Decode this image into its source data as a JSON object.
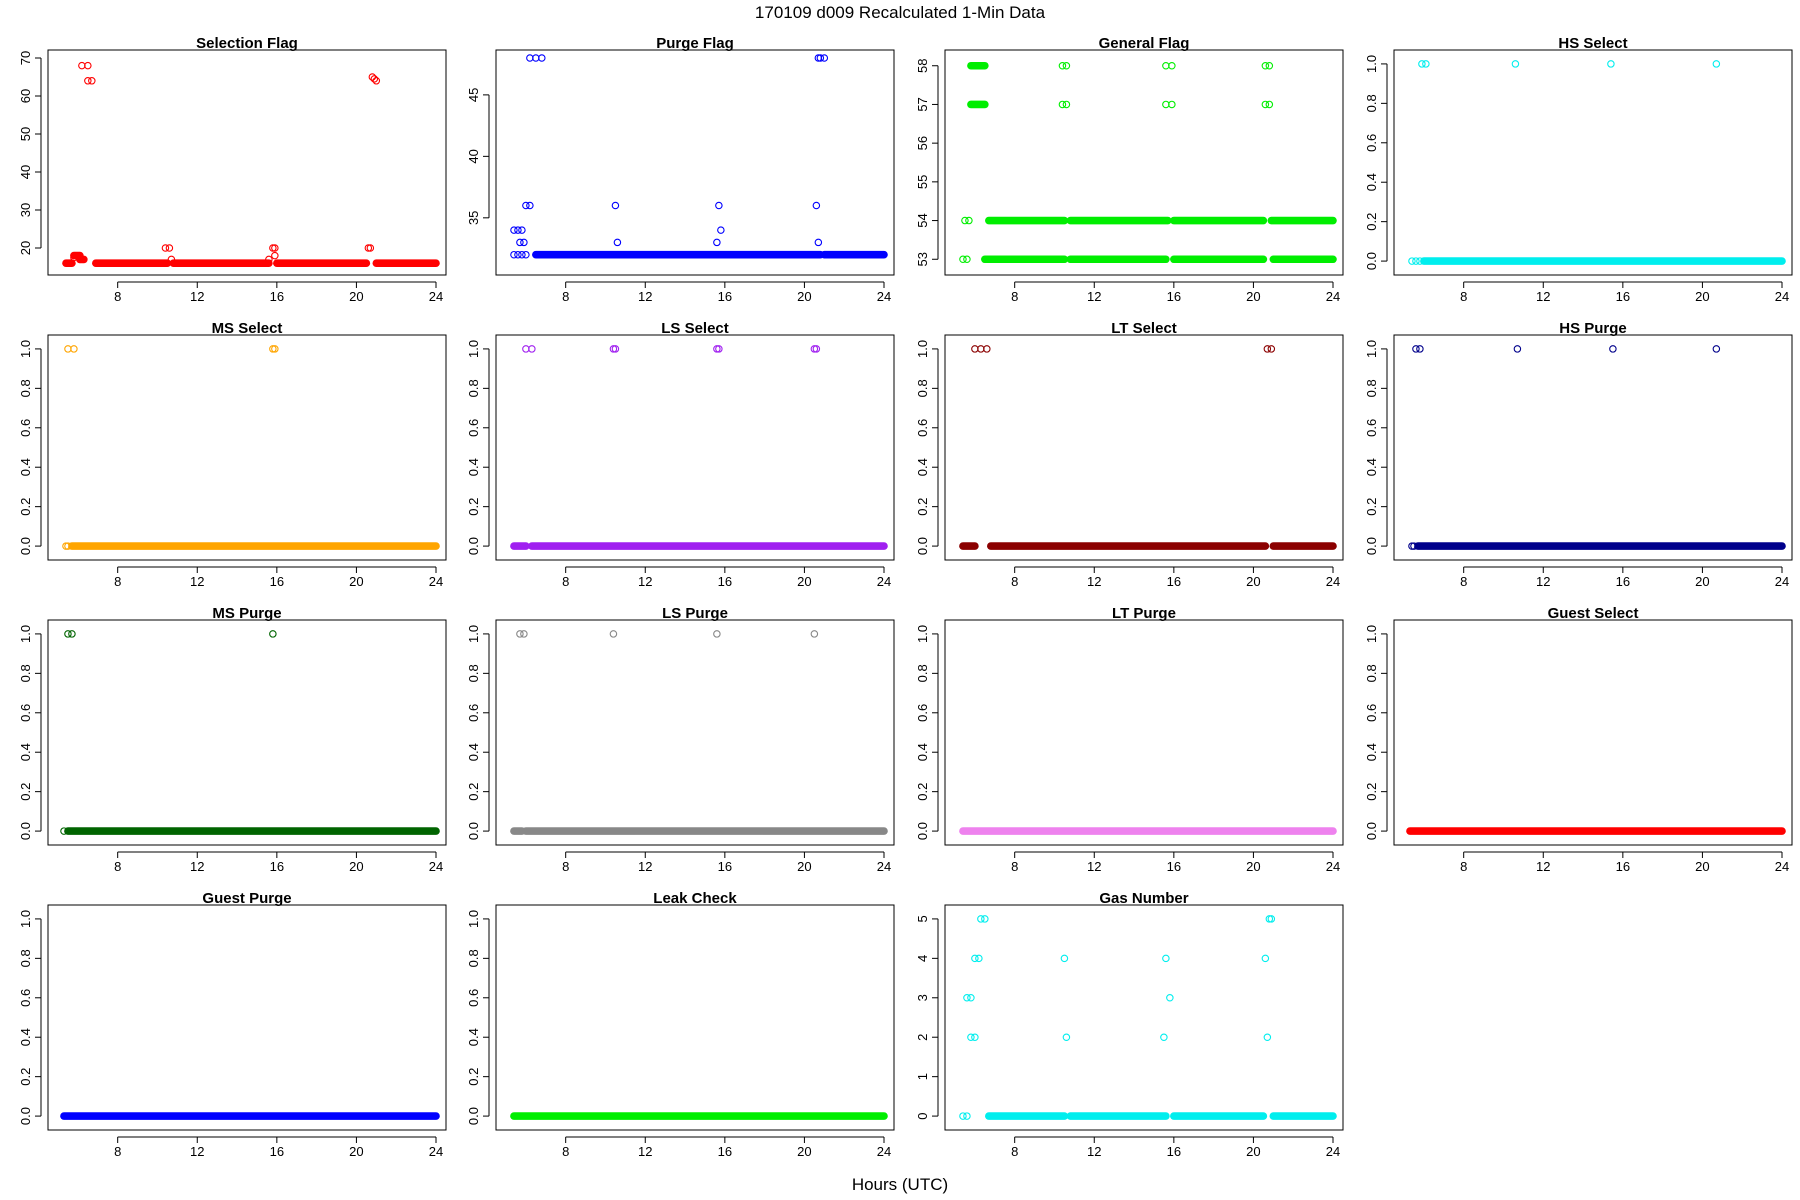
{
  "figure": {
    "title": "170109    d009    Recalculated 1-Min Data",
    "xlabel": "Hours (UTC)"
  },
  "chart_data": [
    {
      "type": "scatter",
      "title": "Selection Flag",
      "color": "#ff0000",
      "xlim": [
        5,
        24
      ],
      "xticks": [
        8,
        12,
        16,
        20,
        24
      ],
      "ylim": [
        15,
        70
      ],
      "yticks": [
        20,
        30,
        40,
        50,
        60,
        70
      ],
      "segments": [
        [
          5.4,
          5.7,
          16
        ],
        [
          5.8,
          6.1,
          18
        ],
        [
          6.1,
          6.3,
          17
        ],
        [
          6.9,
          10.5,
          16
        ],
        [
          10.8,
          15.6,
          16
        ],
        [
          16.0,
          20.5,
          16
        ],
        [
          21.0,
          24,
          16
        ]
      ],
      "points": [
        [
          5.8,
          17.5
        ],
        [
          6.1,
          17
        ],
        [
          6.2,
          68
        ],
        [
          6.5,
          68
        ],
        [
          6.5,
          64
        ],
        [
          6.7,
          64
        ],
        [
          10.4,
          20
        ],
        [
          10.6,
          20
        ],
        [
          10.7,
          17
        ],
        [
          15.6,
          17
        ],
        [
          15.8,
          20
        ],
        [
          15.9,
          20
        ],
        [
          15.9,
          18
        ],
        [
          20.6,
          20
        ],
        [
          20.7,
          20
        ],
        [
          20.8,
          65
        ],
        [
          20.9,
          64.5
        ],
        [
          21.0,
          64
        ]
      ]
    },
    {
      "type": "scatter",
      "title": "Purge Flag",
      "color": "#0000ff",
      "xlim": [
        5,
        24
      ],
      "xticks": [
        8,
        12,
        16,
        20,
        24
      ],
      "ylim": [
        31,
        48
      ],
      "yticks": [
        35,
        40,
        45
      ],
      "segments": [
        [
          6.5,
          20.8,
          32
        ],
        [
          21.0,
          24,
          32
        ]
      ],
      "points": [
        [
          5.4,
          32
        ],
        [
          5.6,
          32
        ],
        [
          5.8,
          32
        ],
        [
          6.0,
          32
        ],
        [
          5.4,
          34
        ],
        [
          5.6,
          34
        ],
        [
          5.8,
          34
        ],
        [
          5.7,
          33
        ],
        [
          5.9,
          33
        ],
        [
          6.0,
          36
        ],
        [
          6.2,
          36
        ],
        [
          6.2,
          48
        ],
        [
          6.5,
          48
        ],
        [
          6.8,
          48
        ],
        [
          10.5,
          36
        ],
        [
          10.6,
          33
        ],
        [
          15.6,
          33
        ],
        [
          15.7,
          36
        ],
        [
          15.8,
          34
        ],
        [
          20.6,
          36
        ],
        [
          20.7,
          33
        ],
        [
          20.7,
          48
        ],
        [
          20.8,
          48
        ],
        [
          21.0,
          48
        ]
      ]
    },
    {
      "type": "scatter",
      "title": "General Flag",
      "color": "#00ee00",
      "xlim": [
        5,
        24
      ],
      "xticks": [
        8,
        12,
        16,
        20,
        24
      ],
      "ylim": [
        52.8,
        58.2
      ],
      "yticks": [
        53,
        54,
        55,
        56,
        57,
        58
      ],
      "segments": [
        [
          6.5,
          10.5,
          53
        ],
        [
          10.8,
          15.6,
          53
        ],
        [
          16.0,
          20.5,
          53
        ],
        [
          21.0,
          24,
          53
        ],
        [
          6.7,
          10.5,
          54
        ],
        [
          10.8,
          15.7,
          54
        ],
        [
          16.0,
          20.5,
          54
        ],
        [
          20.9,
          24,
          54
        ],
        [
          5.8,
          6.5,
          58
        ],
        [
          5.8,
          6.5,
          57
        ]
      ],
      "points": [
        [
          5.4,
          53
        ],
        [
          5.6,
          53
        ],
        [
          5.5,
          54
        ],
        [
          5.7,
          54
        ],
        [
          10.4,
          58
        ],
        [
          10.6,
          58
        ],
        [
          10.4,
          57
        ],
        [
          10.6,
          57
        ],
        [
          15.6,
          58
        ],
        [
          15.9,
          58
        ],
        [
          15.6,
          57
        ],
        [
          15.9,
          57
        ],
        [
          20.6,
          58
        ],
        [
          20.8,
          58
        ],
        [
          20.6,
          57
        ],
        [
          20.8,
          57
        ]
      ]
    },
    {
      "type": "scatter",
      "title": "HS Select",
      "color": "#00eeee",
      "xlim": [
        5,
        24
      ],
      "xticks": [
        8,
        12,
        16,
        20,
        24
      ],
      "ylim": [
        -0.03,
        1.03
      ],
      "yticks": [
        0.0,
        0.2,
        0.4,
        0.6,
        0.8,
        1.0
      ],
      "ytick_labels": [
        "0.0",
        "0.2",
        "0.4",
        "0.6",
        "0.8",
        "1.0"
      ],
      "segments": [
        [
          6.0,
          24,
          0
        ]
      ],
      "points": [
        [
          5.4,
          0
        ],
        [
          5.6,
          0
        ],
        [
          5.8,
          0
        ],
        [
          5.9,
          1
        ],
        [
          6.1,
          1
        ],
        [
          10.6,
          1
        ],
        [
          15.4,
          1
        ],
        [
          20.7,
          1
        ]
      ]
    },
    {
      "type": "scatter",
      "title": "MS Select",
      "color": "#ffa500",
      "xlim": [
        5,
        24
      ],
      "xticks": [
        8,
        12,
        16,
        20,
        24
      ],
      "ylim": [
        -0.03,
        1.03
      ],
      "yticks": [
        0.0,
        0.2,
        0.4,
        0.6,
        0.8,
        1.0
      ],
      "ytick_labels": [
        "0.0",
        "0.2",
        "0.4",
        "0.6",
        "0.8",
        "1.0"
      ],
      "segments": [
        [
          5.7,
          24,
          0
        ]
      ],
      "points": [
        [
          5.4,
          0
        ],
        [
          5.5,
          0
        ],
        [
          5.5,
          1
        ],
        [
          5.8,
          1
        ],
        [
          15.8,
          1
        ],
        [
          15.9,
          1
        ]
      ]
    },
    {
      "type": "scatter",
      "title": "LS Select",
      "color": "#a020f0",
      "xlim": [
        5,
        24
      ],
      "xticks": [
        8,
        12,
        16,
        20,
        24
      ],
      "ylim": [
        -0.03,
        1.03
      ],
      "yticks": [
        0.0,
        0.2,
        0.4,
        0.6,
        0.8,
        1.0
      ],
      "ytick_labels": [
        "0.0",
        "0.2",
        "0.4",
        "0.6",
        "0.8",
        "1.0"
      ],
      "segments": [
        [
          5.4,
          6.0,
          0
        ],
        [
          6.3,
          24,
          0
        ]
      ],
      "points": [
        [
          6.0,
          1
        ],
        [
          6.3,
          1
        ],
        [
          10.4,
          1
        ],
        [
          10.5,
          1
        ],
        [
          15.6,
          1
        ],
        [
          15.7,
          1
        ],
        [
          20.5,
          1
        ],
        [
          20.6,
          1
        ]
      ]
    },
    {
      "type": "scatter",
      "title": "LT Select",
      "color": "#8b0000",
      "xlim": [
        5,
        24
      ],
      "xticks": [
        8,
        12,
        16,
        20,
        24
      ],
      "ylim": [
        -0.03,
        1.03
      ],
      "yticks": [
        0.0,
        0.2,
        0.4,
        0.6,
        0.8,
        1.0
      ],
      "ytick_labels": [
        "0.0",
        "0.2",
        "0.4",
        "0.6",
        "0.8",
        "1.0"
      ],
      "segments": [
        [
          5.4,
          6.0,
          0
        ],
        [
          6.8,
          20.6,
          0
        ],
        [
          21.0,
          24,
          0
        ]
      ],
      "points": [
        [
          6.0,
          1
        ],
        [
          6.3,
          1
        ],
        [
          6.6,
          1
        ],
        [
          20.7,
          1
        ],
        [
          20.9,
          1
        ]
      ]
    },
    {
      "type": "scatter",
      "title": "HS Purge",
      "color": "#00008b",
      "xlim": [
        5,
        24
      ],
      "xticks": [
        8,
        12,
        16,
        20,
        24
      ],
      "ylim": [
        -0.03,
        1.03
      ],
      "yticks": [
        0.0,
        0.2,
        0.4,
        0.6,
        0.8,
        1.0
      ],
      "ytick_labels": [
        "0.0",
        "0.2",
        "0.4",
        "0.6",
        "0.8",
        "1.0"
      ],
      "segments": [
        [
          5.7,
          24,
          0
        ]
      ],
      "points": [
        [
          5.4,
          0
        ],
        [
          5.5,
          0
        ],
        [
          5.6,
          1
        ],
        [
          5.8,
          1
        ],
        [
          10.7,
          1
        ],
        [
          15.5,
          1
        ],
        [
          20.7,
          1
        ]
      ]
    },
    {
      "type": "scatter",
      "title": "MS Purge",
      "color": "#006400",
      "xlim": [
        5,
        24
      ],
      "xticks": [
        8,
        12,
        16,
        20,
        24
      ],
      "ylim": [
        -0.03,
        1.03
      ],
      "yticks": [
        0.0,
        0.2,
        0.4,
        0.6,
        0.8,
        1.0
      ],
      "ytick_labels": [
        "0.0",
        "0.2",
        "0.4",
        "0.6",
        "0.8",
        "1.0"
      ],
      "segments": [
        [
          5.5,
          24,
          0
        ]
      ],
      "points": [
        [
          5.3,
          0
        ],
        [
          5.5,
          1
        ],
        [
          5.7,
          1
        ],
        [
          15.8,
          1
        ]
      ]
    },
    {
      "type": "scatter",
      "title": "LS Purge",
      "color": "#888888",
      "xlim": [
        5,
        24
      ],
      "xticks": [
        8,
        12,
        16,
        20,
        24
      ],
      "ylim": [
        -0.03,
        1.03
      ],
      "yticks": [
        0.0,
        0.2,
        0.4,
        0.6,
        0.8,
        1.0
      ],
      "ytick_labels": [
        "0.0",
        "0.2",
        "0.4",
        "0.6",
        "0.8",
        "1.0"
      ],
      "segments": [
        [
          5.4,
          5.8,
          0
        ],
        [
          6.0,
          24,
          0
        ]
      ],
      "points": [
        [
          5.7,
          1
        ],
        [
          5.9,
          1
        ],
        [
          10.4,
          1
        ],
        [
          15.6,
          1
        ],
        [
          20.5,
          1
        ]
      ]
    },
    {
      "type": "scatter",
      "title": "LT Purge",
      "color": "#ee82ee",
      "xlim": [
        5,
        24
      ],
      "xticks": [
        8,
        12,
        16,
        20,
        24
      ],
      "ylim": [
        -0.03,
        1.03
      ],
      "yticks": [
        0.0,
        0.2,
        0.4,
        0.6,
        0.8,
        1.0
      ],
      "ytick_labels": [
        "0.0",
        "0.2",
        "0.4",
        "0.6",
        "0.8",
        "1.0"
      ],
      "segments": [
        [
          5.4,
          24,
          0
        ]
      ],
      "points": []
    },
    {
      "type": "scatter",
      "title": "Guest Select",
      "color": "#ff0000",
      "xlim": [
        5,
        24
      ],
      "xticks": [
        8,
        12,
        16,
        20,
        24
      ],
      "ylim": [
        -0.03,
        1.03
      ],
      "yticks": [
        0.0,
        0.2,
        0.4,
        0.6,
        0.8,
        1.0
      ],
      "ytick_labels": [
        "0.0",
        "0.2",
        "0.4",
        "0.6",
        "0.8",
        "1.0"
      ],
      "segments": [
        [
          5.3,
          24,
          0
        ]
      ],
      "points": []
    },
    {
      "type": "scatter",
      "title": "Guest Purge",
      "color": "#0000ff",
      "xlim": [
        5,
        24
      ],
      "xticks": [
        8,
        12,
        16,
        20,
        24
      ],
      "ylim": [
        -0.03,
        1.03
      ],
      "yticks": [
        0.0,
        0.2,
        0.4,
        0.6,
        0.8,
        1.0
      ],
      "ytick_labels": [
        "0.0",
        "0.2",
        "0.4",
        "0.6",
        "0.8",
        "1.0"
      ],
      "segments": [
        [
          5.3,
          24,
          0
        ]
      ],
      "points": []
    },
    {
      "type": "scatter",
      "title": "Leak Check",
      "color": "#00ee00",
      "xlim": [
        5,
        24
      ],
      "xticks": [
        8,
        12,
        16,
        20,
        24
      ],
      "ylim": [
        -0.03,
        1.03
      ],
      "yticks": [
        0.0,
        0.2,
        0.4,
        0.6,
        0.8,
        1.0
      ],
      "ytick_labels": [
        "0.0",
        "0.2",
        "0.4",
        "0.6",
        "0.8",
        "1.0"
      ],
      "segments": [
        [
          5.4,
          24,
          0
        ]
      ],
      "points": []
    },
    {
      "type": "scatter",
      "title": "Gas Number",
      "color": "#00eeee",
      "xlim": [
        5,
        24
      ],
      "xticks": [
        8,
        12,
        16,
        20,
        24
      ],
      "ylim": [
        -0.15,
        5.15
      ],
      "yticks": [
        0,
        1,
        2,
        3,
        4,
        5
      ],
      "segments": [
        [
          6.7,
          10.5,
          0
        ],
        [
          10.8,
          15.6,
          0
        ],
        [
          16.0,
          20.5,
          0
        ],
        [
          21.0,
          24,
          0
        ]
      ],
      "points": [
        [
          5.4,
          0
        ],
        [
          5.6,
          0
        ],
        [
          5.6,
          3
        ],
        [
          5.8,
          3
        ],
        [
          5.8,
          2
        ],
        [
          6.0,
          2
        ],
        [
          6.0,
          4
        ],
        [
          6.2,
          4
        ],
        [
          6.3,
          5
        ],
        [
          6.5,
          5
        ],
        [
          10.5,
          4
        ],
        [
          10.6,
          2
        ],
        [
          15.5,
          2
        ],
        [
          15.6,
          4
        ],
        [
          15.8,
          3
        ],
        [
          20.6,
          4
        ],
        [
          20.7,
          2
        ],
        [
          20.8,
          5
        ],
        [
          20.9,
          5
        ]
      ]
    }
  ]
}
